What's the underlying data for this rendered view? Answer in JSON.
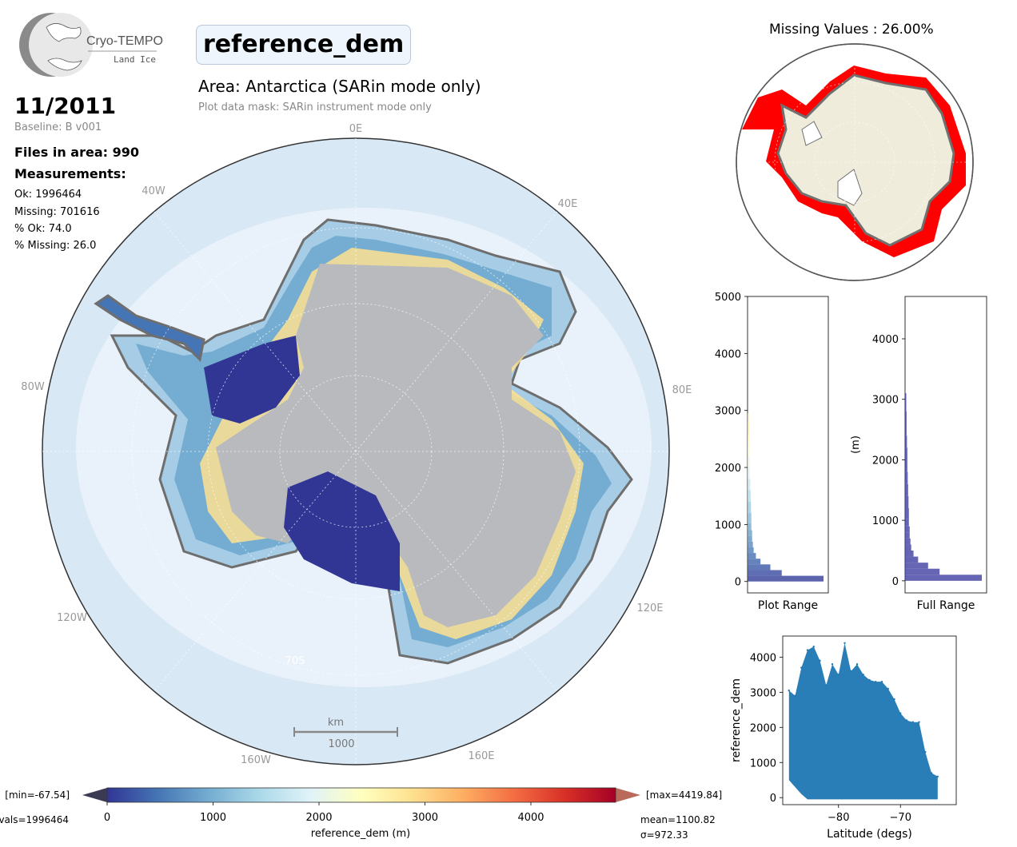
{
  "logo": {
    "name": "Cryo-TEMPO",
    "subtitle": "Land Ice"
  },
  "header": {
    "parameter": "reference_dem",
    "area_title": "Area: Antarctica (SARin mode only)",
    "mask_note": "Plot data mask: SARin instrument mode only"
  },
  "info": {
    "date": "11/2011",
    "baseline": "Baseline: B v001",
    "files": "Files in area: 990",
    "measurements_heading": "Measurements:",
    "ok": "Ok: 1996464",
    "missing": "Missing: 701616",
    "pct_ok": "% Ok: 74.0",
    "pct_missing": "% Missing: 26.0"
  },
  "map": {
    "meridian_labels": [
      "0E",
      "40E",
      "80E",
      "120E",
      "160E",
      "160W",
      "120W",
      "80W",
      "40W"
    ],
    "lat_label": "70S",
    "scale_unit": "km",
    "scale_value": "1000"
  },
  "missing_map": {
    "title": "Missing Values : 26.00%"
  },
  "colorbar": {
    "label": "reference_dem (m)",
    "ticks": [
      "0",
      "1000",
      "2000",
      "3000",
      "4000"
    ],
    "range": [
      0,
      4800
    ],
    "min_text": "[min=-67.54]",
    "max_text": "[max=4419.84]",
    "nvals_text": "vals=1996464",
    "mean_text": "mean=1100.82",
    "sigma_text": "σ=972.33",
    "colors": [
      "#313695",
      "#4575b4",
      "#74add1",
      "#abd9e9",
      "#e0f3f8",
      "#ffffbf",
      "#fee090",
      "#fdae61",
      "#f46d43",
      "#d73027",
      "#a50026"
    ]
  },
  "chart_data": [
    {
      "type": "bar",
      "orientation": "horizontal",
      "xlabel": "Plot Range",
      "ylabel": "",
      "ylim": [
        -200,
        5000
      ],
      "yticks": [
        0,
        1000,
        2000,
        3000,
        4000,
        5000
      ],
      "bin_centers": [
        50,
        150,
        250,
        350,
        450,
        550,
        650,
        750,
        850,
        950,
        1100,
        1300,
        1500,
        1700,
        1900,
        2100,
        2300,
        2500,
        2700,
        2900
      ],
      "relative_counts": [
        1.0,
        0.45,
        0.3,
        0.17,
        0.11,
        0.08,
        0.07,
        0.06,
        0.06,
        0.05,
        0.05,
        0.045,
        0.04,
        0.035,
        0.03,
        0.03,
        0.025,
        0.02,
        0.02,
        0.015
      ]
    },
    {
      "type": "bar",
      "orientation": "horizontal",
      "xlabel": "Full Range",
      "ylabel": "(m)",
      "ylim": [
        -200,
        4700
      ],
      "yticks": [
        0,
        1000,
        2000,
        3000,
        4000
      ],
      "color": "#3f3fa0",
      "bin_centers": [
        50,
        150,
        250,
        350,
        450,
        550,
        650,
        750,
        850,
        950,
        1100,
        1300,
        1500,
        1700,
        1900,
        2100,
        2300,
        2500,
        2700,
        2900,
        3050
      ],
      "relative_counts": [
        1.0,
        0.45,
        0.3,
        0.17,
        0.11,
        0.08,
        0.07,
        0.06,
        0.06,
        0.05,
        0.05,
        0.045,
        0.04,
        0.035,
        0.03,
        0.03,
        0.025,
        0.02,
        0.02,
        0.015,
        0.01
      ]
    },
    {
      "type": "scatter",
      "xlabel": "Latitude (degs)",
      "ylabel": "reference_dem",
      "xlim": [
        -89,
        -61
      ],
      "ylim": [
        -200,
        4600
      ],
      "xticks": [
        -80,
        -70
      ],
      "yticks": [
        0,
        1000,
        2000,
        3000,
        4000
      ],
      "color": "#1f77b4",
      "upper_envelope": [
        [
          -88,
          3050
        ],
        [
          -87,
          2900
        ],
        [
          -86,
          3700
        ],
        [
          -85,
          4200
        ],
        [
          -84,
          4300
        ],
        [
          -83,
          3900
        ],
        [
          -82,
          3200
        ],
        [
          -81,
          3800
        ],
        [
          -80,
          3500
        ],
        [
          -79,
          4400
        ],
        [
          -78,
          3600
        ],
        [
          -77,
          3800
        ],
        [
          -76,
          3500
        ],
        [
          -75,
          3350
        ],
        [
          -74,
          3300
        ],
        [
          -73,
          3300
        ],
        [
          -72,
          3100
        ],
        [
          -71,
          2800
        ],
        [
          -70,
          2400
        ],
        [
          -69,
          2200
        ],
        [
          -68,
          2150
        ],
        [
          -67,
          2150
        ],
        [
          -66,
          1300
        ],
        [
          -65,
          700
        ],
        [
          -64,
          600
        ]
      ],
      "lower_envelope": [
        [
          -88,
          500
        ],
        [
          -87,
          300
        ],
        [
          -86,
          100
        ],
        [
          -85,
          -50
        ],
        [
          -80,
          -50
        ],
        [
          -75,
          -50
        ],
        [
          -70,
          -50
        ],
        [
          -66,
          -50
        ],
        [
          -64,
          -50
        ]
      ]
    }
  ]
}
